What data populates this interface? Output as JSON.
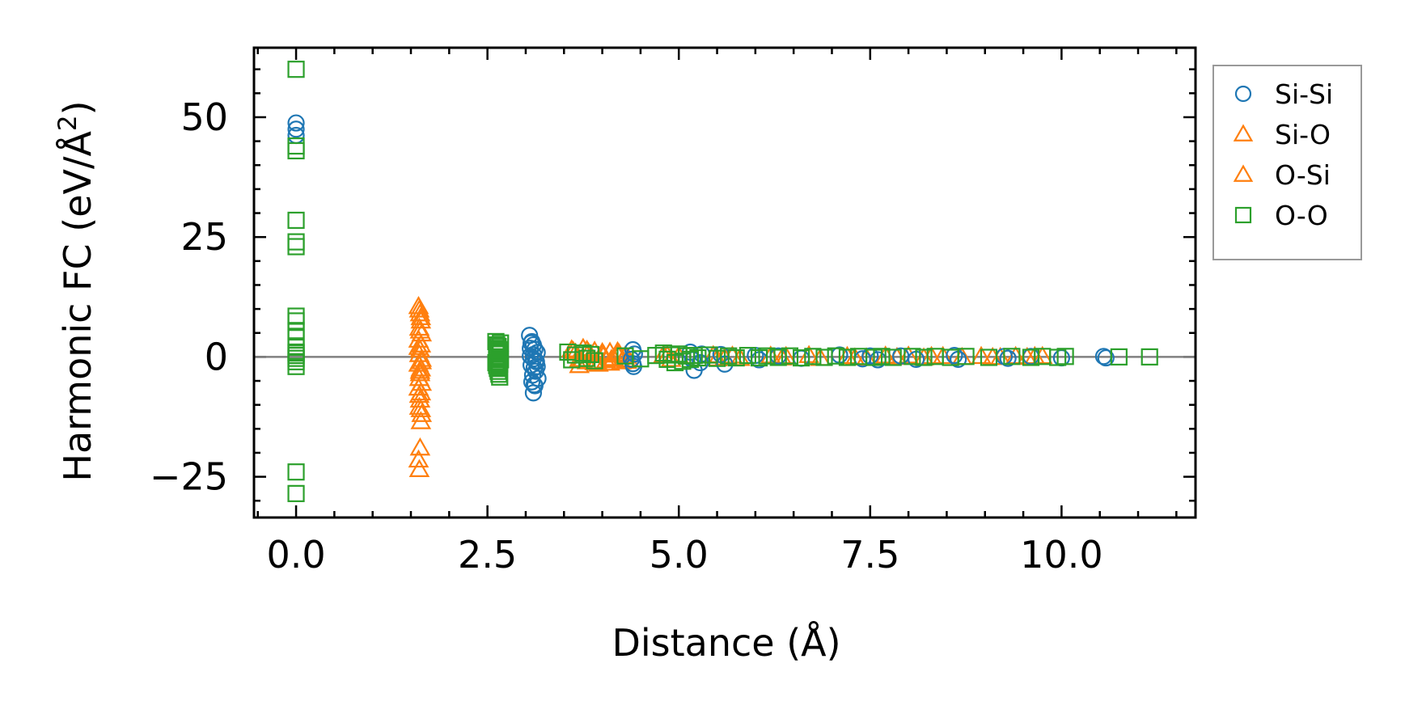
{
  "chart_data": {
    "type": "scatter",
    "title": "",
    "xlabel": "Distance (Å)",
    "ylabel_main": "Harmonic FC (eV/Å",
    "ylabel_sup": "2",
    "ylabel_close": ")",
    "xlim": [
      -0.55,
      11.75
    ],
    "ylim": [
      -33.5,
      64.5
    ],
    "xticks": [
      0.0,
      2.5,
      5.0,
      7.5,
      10.0
    ],
    "xtick_labels": [
      "0.0",
      "2.5",
      "5.0",
      "7.5",
      "10.0"
    ],
    "yticks": [
      -25,
      0,
      25,
      50
    ],
    "ytick_labels": [
      "−25",
      "0",
      "25",
      "50"
    ],
    "x_minor_step": 0.5,
    "y_minor_step": 5,
    "grid": false,
    "zero_line": 0,
    "legend_location": "outside-right-top",
    "series": [
      {
        "name": "Si-Si",
        "marker": "circle",
        "color": "#1f77b4",
        "x": [
          0.0,
          0.0,
          0.0,
          3.05,
          3.08,
          3.1,
          3.12,
          3.15,
          3.06,
          3.1,
          3.14,
          3.07,
          3.11,
          3.13,
          3.09,
          3.16,
          3.08,
          3.12,
          3.1,
          3.06,
          3.15,
          3.1,
          3.13,
          3.07,
          3.11,
          4.4,
          4.42,
          4.38,
          4.4,
          4.41,
          5.15,
          5.18,
          5.2,
          5.3,
          5.28,
          5.55,
          5.6,
          6.0,
          6.05,
          6.3,
          6.6,
          7.1,
          7.4,
          7.5,
          7.6,
          7.9,
          8.1,
          8.6,
          8.65,
          9.25,
          9.3,
          9.6,
          10.0,
          10.55,
          10.58
        ],
        "y": [
          48.8,
          47.5,
          46.2,
          4.5,
          3.2,
          2.5,
          1.6,
          0.9,
          0.2,
          -0.4,
          -1.0,
          -1.7,
          -2.3,
          -3.0,
          -3.8,
          -4.5,
          -5.2,
          -6.0,
          -7.5,
          1.8,
          -2.0,
          0.5,
          -0.8,
          2.9,
          -5.8,
          1.5,
          0.6,
          -0.5,
          -1.4,
          -2.0,
          1.0,
          -0.6,
          -2.8,
          0.6,
          -1.2,
          0.5,
          -1.5,
          0.3,
          -0.6,
          0.2,
          -0.3,
          0.4,
          -0.4,
          0.2,
          -0.6,
          0.2,
          -0.5,
          0.3,
          -0.5,
          0.1,
          -0.3,
          0.1,
          -0.2,
          0.1,
          -0.2
        ]
      },
      {
        "name": "Si-O",
        "marker": "triangle",
        "color": "#ff7f0e",
        "x": [
          1.6,
          1.62,
          1.63,
          1.61,
          1.64,
          1.6,
          1.63,
          1.62,
          1.61,
          1.64,
          1.6,
          1.63,
          1.62,
          1.61,
          1.64,
          1.6,
          1.63,
          1.62,
          1.61,
          1.64,
          1.63,
          1.62,
          1.6,
          1.61,
          3.6,
          3.65,
          3.7,
          3.75,
          3.8,
          3.85,
          3.9,
          3.95,
          4.0,
          4.05,
          4.1,
          4.15,
          4.2,
          4.25,
          4.3,
          4.35,
          3.7,
          3.8,
          3.9,
          4.0,
          4.1,
          4.2,
          4.8,
          4.9,
          5.0,
          5.45,
          5.5,
          5.7,
          5.8,
          6.2,
          6.35,
          6.7,
          6.85,
          7.2,
          7.45,
          7.7,
          7.85,
          8.0,
          8.2,
          8.45,
          8.7,
          8.95,
          9.2,
          9.4,
          9.55,
          9.75
        ],
        "y": [
          10.5,
          9.0,
          7.5,
          6.0,
          4.8,
          3.5,
          2.5,
          1.5,
          0.5,
          -0.5,
          -1.5,
          -2.5,
          -3.5,
          -4.5,
          -5.5,
          -6.5,
          -7.5,
          -9.0,
          -10.5,
          -12.0,
          -13.5,
          -19.0,
          -21.5,
          -23.5,
          1.5,
          0.8,
          -0.5,
          1.8,
          -1.0,
          0.3,
          1.2,
          -1.5,
          0.6,
          -0.8,
          1.0,
          -0.3,
          0.5,
          -1.0,
          0.2,
          -0.6,
          -1.8,
          1.4,
          -1.2,
          0.9,
          -1.3,
          1.1,
          0.4,
          -0.5,
          0.2,
          0.3,
          -0.4,
          0.2,
          -0.3,
          0.2,
          -0.2,
          0.3,
          -0.3,
          0.1,
          -0.2,
          0.2,
          -0.1,
          0.2,
          -0.2,
          0.1,
          -0.1,
          0.1,
          -0.1,
          0.1,
          -0.1,
          0.1
        ]
      },
      {
        "name": "O-Si",
        "marker": "triangle",
        "color": "#ff7f0e",
        "x": [
          1.61,
          1.63,
          1.62,
          1.6,
          1.64,
          1.62,
          1.61,
          1.63,
          3.62,
          3.72,
          3.82,
          3.92,
          4.02,
          4.12,
          4.22,
          4.32,
          4.85,
          5.6,
          6.4,
          7.3,
          8.3,
          9.1,
          9.65
        ],
        "y": [
          9.8,
          8.2,
          5.4,
          2.0,
          -1.0,
          -3.0,
          -8.0,
          -11.0,
          1.2,
          -0.7,
          0.9,
          -1.1,
          0.4,
          -0.5,
          0.7,
          -0.9,
          0.3,
          -0.2,
          0.1,
          -0.2,
          0.1,
          -0.1,
          0.1
        ]
      },
      {
        "name": "O-O",
        "marker": "square",
        "color": "#2ca02c",
        "x": [
          0.0,
          0.0,
          0.0,
          0.0,
          0.0,
          0.0,
          0.0,
          0.0,
          0.0,
          0.0,
          0.0,
          0.0,
          0.0,
          0.0,
          0.0,
          0.0,
          0.0,
          0.0,
          0.0,
          2.61,
          2.62,
          2.63,
          2.64,
          2.65,
          2.66,
          2.67,
          2.61,
          2.62,
          2.63,
          2.64,
          2.65,
          2.66,
          2.67,
          2.63,
          2.65,
          2.64,
          2.62,
          2.66,
          2.64,
          3.55,
          3.6,
          3.65,
          3.75,
          3.8,
          3.85,
          3.9,
          4.3,
          4.5,
          4.7,
          4.8,
          4.85,
          4.9,
          4.95,
          5.0,
          5.05,
          5.1,
          5.15,
          5.2,
          5.25,
          5.4,
          5.5,
          5.65,
          5.75,
          5.9,
          6.05,
          6.15,
          6.3,
          6.45,
          6.6,
          6.75,
          6.9,
          7.05,
          7.2,
          7.35,
          7.55,
          7.65,
          7.8,
          8.05,
          8.2,
          8.35,
          8.55,
          8.75,
          9.05,
          9.35,
          9.6,
          9.75,
          9.95,
          10.05,
          10.75,
          11.15
        ],
        "y": [
          60.0,
          44.0,
          43.0,
          28.5,
          24.0,
          23.0,
          8.5,
          7.5,
          5.5,
          4.0,
          2.0,
          1.0,
          0.3,
          -0.3,
          -1.0,
          -2.0,
          -24.0,
          -28.5,
          0.8,
          3.2,
          2.5,
          1.8,
          1.2,
          0.6,
          0.0,
          -0.6,
          -1.2,
          -1.8,
          -2.4,
          -3.0,
          -3.6,
          -4.2,
          2.9,
          -0.3,
          1.5,
          -2.1,
          0.9,
          -1.5,
          2.2,
          1.0,
          -0.6,
          0.4,
          0.8,
          -0.3,
          0.5,
          -0.8,
          0.2,
          -0.4,
          0.3,
          0.8,
          -0.5,
          0.4,
          -1.2,
          0.6,
          -0.9,
          0.2,
          -0.5,
          0.3,
          -0.2,
          0.4,
          -0.3,
          0.2,
          -0.2,
          0.3,
          -0.2,
          0.2,
          -0.1,
          0.2,
          -0.2,
          0.1,
          -0.1,
          0.2,
          -0.1,
          0.1,
          -0.1,
          0.1,
          -0.1,
          0.1,
          -0.1,
          0.1,
          -0.1,
          0.1,
          -0.1,
          0.1,
          -0.1,
          0.1,
          -0.1,
          0.1,
          0.0,
          0.0
        ]
      }
    ]
  }
}
